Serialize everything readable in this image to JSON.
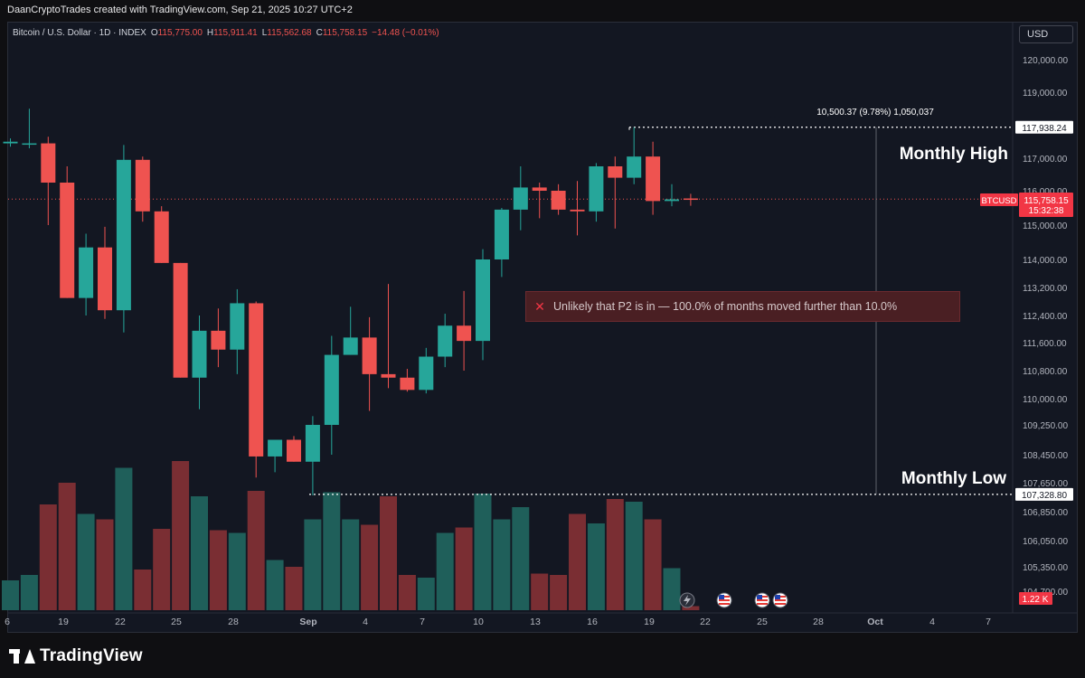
{
  "credit": "DaanCryptoTrades created with TradingView.com, Sep 21, 2025 10:27 UTC+2",
  "legend": {
    "symbol": "Bitcoin / U.S. Dollar · 1D · INDEX",
    "o_label": "O",
    "o": "115,775.00",
    "h_label": "H",
    "h": "115,911.41",
    "l_label": "L",
    "l": "115,562.68",
    "c_label": "C",
    "c": "115,758.15",
    "change": "−14.48 (−0.01%)"
  },
  "currency_button": "USD",
  "annotations": {
    "range_measure": "10,500.37 (9.78%) 1,050,037",
    "monthly_high": "Monthly High",
    "monthly_low": "Monthly Low",
    "alert_icon": "close-x-icon",
    "alert_text": "Unlikely that P2 is in — 100.0% of months moved further than 10.0%"
  },
  "price_tags": {
    "high": "117,938.24",
    "low": "107,328.80",
    "symbol": "BTCUSD",
    "last": "115,758.15",
    "countdown": "15:32:38",
    "volume": "1.22 K"
  },
  "logo_text": "TradingView",
  "colors": {
    "up": "#26a69a",
    "down": "#ef5350",
    "up_volume": "#1f5f5a",
    "down_volume": "#7a2e33",
    "background": "#131722",
    "label_red": "#f23645",
    "alert_bg": "#4a1f23"
  },
  "chart_data": {
    "type": "candlestick",
    "title": "Bitcoin / U.S. Dollar · 1D · INDEX",
    "x_ticks": [
      "6",
      "19",
      "22",
      "25",
      "28",
      "Sep",
      "4",
      "7",
      "10",
      "13",
      "16",
      "19",
      "22",
      "25",
      "28",
      "Oct",
      "4",
      "7"
    ],
    "y_ticks": [
      "120,000.00",
      "119,000.00",
      "117,000.00",
      "116,000.00",
      "115,000.00",
      "114,000.00",
      "113,200.00",
      "112,400.00",
      "111,600.00",
      "110,800.00",
      "110,000.00",
      "109,250.00",
      "108,450.00",
      "107,650.00",
      "106,850.00",
      "106,050.00",
      "105,350.00",
      "104,700.00"
    ],
    "y_range": [
      104700,
      120300
    ],
    "monthly_high": 117938.24,
    "monthly_low": 107328.8,
    "last_price": 115758.15,
    "candles": [
      {
        "date": "Aug 16",
        "o": 117450,
        "h": 117600,
        "l": 117350,
        "c": 117500
      },
      {
        "date": "Aug 17",
        "o": 117450,
        "h": 118500,
        "l": 117300,
        "c": 117450
      },
      {
        "date": "Aug 18",
        "o": 117450,
        "h": 117650,
        "l": 115000,
        "c": 116250
      },
      {
        "date": "Aug 19",
        "o": 116250,
        "h": 116750,
        "l": 112900,
        "c": 112900
      },
      {
        "date": "Aug 20",
        "o": 112900,
        "h": 114750,
        "l": 112400,
        "c": 114350
      },
      {
        "date": "Aug 21",
        "o": 114350,
        "h": 114950,
        "l": 112300,
        "c": 112550
      },
      {
        "date": "Aug 22",
        "o": 112550,
        "h": 117400,
        "l": 111900,
        "c": 116950
      },
      {
        "date": "Aug 23",
        "o": 116950,
        "h": 117050,
        "l": 115100,
        "c": 115400
      },
      {
        "date": "Aug 24",
        "o": 115400,
        "h": 115550,
        "l": 113900,
        "c": 113900
      },
      {
        "date": "Aug 25",
        "o": 113900,
        "h": 113900,
        "l": 110600,
        "c": 110600
      },
      {
        "date": "Aug 26",
        "o": 110600,
        "h": 112400,
        "l": 109700,
        "c": 111950
      },
      {
        "date": "Aug 27",
        "o": 111950,
        "h": 112600,
        "l": 110900,
        "c": 111400
      },
      {
        "date": "Aug 28",
        "o": 111400,
        "h": 113150,
        "l": 110700,
        "c": 112750
      },
      {
        "date": "Aug 29",
        "o": 112750,
        "h": 112800,
        "l": 107800,
        "c": 108400
      },
      {
        "date": "Aug 30",
        "o": 108400,
        "h": 108800,
        "l": 107950,
        "c": 108850
      },
      {
        "date": "Aug 31",
        "o": 108850,
        "h": 108950,
        "l": 108250,
        "c": 108250
      },
      {
        "date": "Sep 1",
        "o": 108250,
        "h": 109500,
        "l": 107300,
        "c": 109250
      },
      {
        "date": "Sep 2",
        "o": 109250,
        "h": 111800,
        "l": 108450,
        "c": 111250
      },
      {
        "date": "Sep 3",
        "o": 111250,
        "h": 112650,
        "l": 111250,
        "c": 111750
      },
      {
        "date": "Sep 4",
        "o": 111750,
        "h": 112350,
        "l": 109650,
        "c": 110700
      },
      {
        "date": "Sep 5",
        "o": 110700,
        "h": 113300,
        "l": 110300,
        "c": 110600
      },
      {
        "date": "Sep 6",
        "o": 110600,
        "h": 110850,
        "l": 110200,
        "c": 110250
      },
      {
        "date": "Sep 7",
        "o": 110250,
        "h": 111450,
        "l": 110150,
        "c": 111200
      },
      {
        "date": "Sep 8",
        "o": 111200,
        "h": 112450,
        "l": 110900,
        "c": 112100
      },
      {
        "date": "Sep 9",
        "o": 112100,
        "h": 113100,
        "l": 110800,
        "c": 111650
      },
      {
        "date": "Sep 10",
        "o": 111650,
        "h": 114300,
        "l": 111100,
        "c": 114000
      },
      {
        "date": "Sep 11",
        "o": 114000,
        "h": 115500,
        "l": 113500,
        "c": 115450
      },
      {
        "date": "Sep 12",
        "o": 115450,
        "h": 116750,
        "l": 114850,
        "c": 116100
      },
      {
        "date": "Sep 13",
        "o": 116100,
        "h": 116250,
        "l": 115200,
        "c": 116000
      },
      {
        "date": "Sep 14",
        "o": 116000,
        "h": 116200,
        "l": 115300,
        "c": 115450
      },
      {
        "date": "Sep 15",
        "o": 115450,
        "h": 116300,
        "l": 114700,
        "c": 115400
      },
      {
        "date": "Sep 16",
        "o": 115400,
        "h": 116850,
        "l": 115100,
        "c": 116750
      },
      {
        "date": "Sep 17",
        "o": 116750,
        "h": 117050,
        "l": 114900,
        "c": 116400
      },
      {
        "date": "Sep 18",
        "o": 116400,
        "h": 117938,
        "l": 116200,
        "c": 117050
      },
      {
        "date": "Sep 19",
        "o": 117050,
        "h": 117500,
        "l": 115300,
        "c": 115700
      },
      {
        "date": "Sep 20",
        "o": 115700,
        "h": 116200,
        "l": 115550,
        "c": 115750
      },
      {
        "date": "Sep 21",
        "o": 115775,
        "h": 115911.41,
        "l": 115562.68,
        "c": 115758.15
      }
    ],
    "volume": [
      {
        "date": "Aug 16",
        "v": 0.22
      },
      {
        "date": "Aug 17",
        "v": 0.26
      },
      {
        "date": "Aug 18",
        "v": 0.78
      },
      {
        "date": "Aug 19",
        "v": 0.94
      },
      {
        "date": "Aug 20",
        "v": 0.71
      },
      {
        "date": "Aug 21",
        "v": 0.67
      },
      {
        "date": "Aug 22",
        "v": 1.05
      },
      {
        "date": "Aug 23",
        "v": 0.3
      },
      {
        "date": "Aug 24",
        "v": 0.6
      },
      {
        "date": "Aug 25",
        "v": 1.1
      },
      {
        "date": "Aug 26",
        "v": 0.84
      },
      {
        "date": "Aug 27",
        "v": 0.59
      },
      {
        "date": "Aug 28",
        "v": 0.57
      },
      {
        "date": "Aug 29",
        "v": 0.88
      },
      {
        "date": "Aug 30",
        "v": 0.37
      },
      {
        "date": "Aug 31",
        "v": 0.32
      },
      {
        "date": "Sep 1",
        "v": 0.67
      },
      {
        "date": "Sep 2",
        "v": 0.87
      },
      {
        "date": "Sep 3",
        "v": 0.67
      },
      {
        "date": "Sep 4",
        "v": 0.63
      },
      {
        "date": "Sep 5",
        "v": 0.84
      },
      {
        "date": "Sep 6",
        "v": 0.26
      },
      {
        "date": "Sep 7",
        "v": 0.24
      },
      {
        "date": "Sep 8",
        "v": 0.57
      },
      {
        "date": "Sep 9",
        "v": 0.61
      },
      {
        "date": "Sep 10",
        "v": 0.86
      },
      {
        "date": "Sep 11",
        "v": 0.67
      },
      {
        "date": "Sep 12",
        "v": 0.76
      },
      {
        "date": "Sep 13",
        "v": 0.27
      },
      {
        "date": "Sep 14",
        "v": 0.26
      },
      {
        "date": "Sep 15",
        "v": 0.71
      },
      {
        "date": "Sep 16",
        "v": 0.64
      },
      {
        "date": "Sep 17",
        "v": 0.82
      },
      {
        "date": "Sep 18",
        "v": 0.8
      },
      {
        "date": "Sep 19",
        "v": 0.67
      },
      {
        "date": "Sep 20",
        "v": 0.31
      },
      {
        "date": "Sep 21",
        "v": 0.03
      }
    ],
    "events": [
      "lightning-icon",
      "us-flag-icon",
      "us-flag-icon",
      "us-flag-icon"
    ]
  }
}
